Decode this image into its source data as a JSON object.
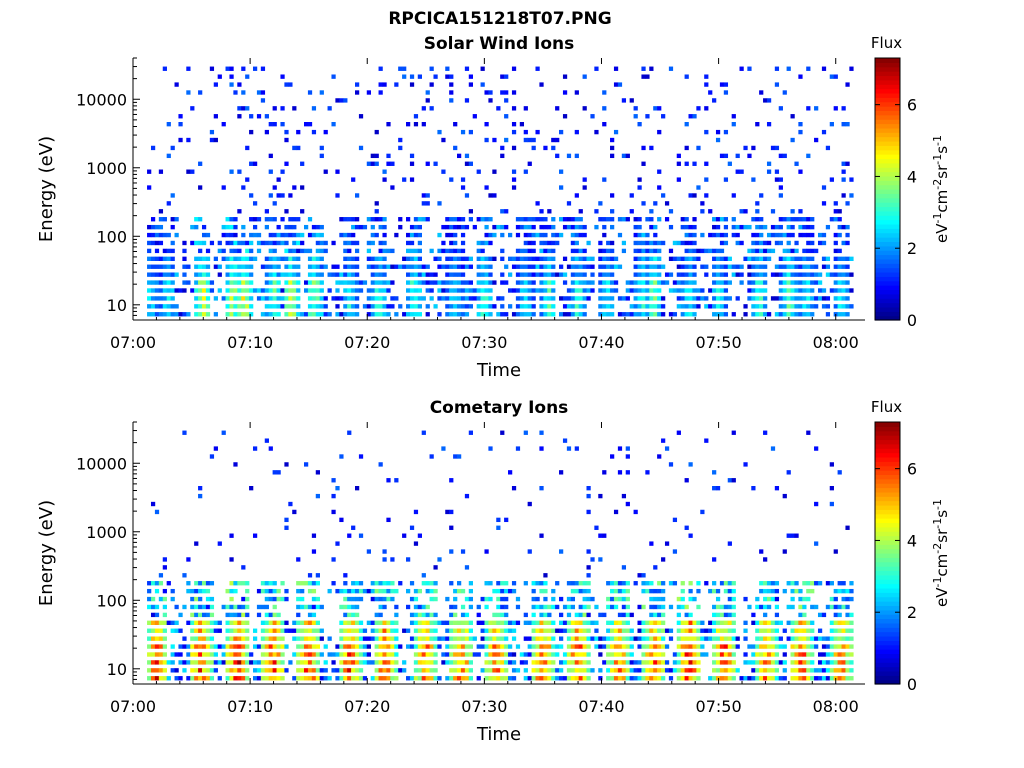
{
  "title": "RPCICA151218T07.PNG",
  "chart_data": [
    {
      "type": "heatmap",
      "title": "Solar Wind Ions",
      "xlabel": "Time",
      "ylabel": "Energy (eV)",
      "x_tick_labels": [
        "07:00",
        "07:10",
        "07:20",
        "07:30",
        "07:40",
        "07:50",
        "08:00"
      ],
      "x_ticks_min": [
        0,
        10,
        20,
        30,
        40,
        50,
        60
      ],
      "xlim_min": [
        0,
        62.5
      ],
      "y_tick_labels": [
        "10",
        "100",
        "1000",
        "10000"
      ],
      "y_ticks": [
        10,
        100,
        1000,
        10000
      ],
      "ylim": [
        6,
        40000
      ],
      "y_scale": "log",
      "colorbar": {
        "title": "Flux",
        "label": "eV-1cm-2sr-1s-1",
        "range": [
          0,
          7.3
        ],
        "tick_labels": [
          "0",
          "2",
          "4",
          "6"
        ],
        "ticks": [
          0,
          2,
          4,
          6
        ]
      },
      "colormap": "jet",
      "bursts_min": [
        1.5,
        3.0,
        6.0,
        8.5,
        9.5,
        12.0,
        13.5,
        15.5,
        18.5,
        21.0,
        24.0,
        27.5,
        30.0,
        33.5,
        35.5,
        38.0,
        40.5,
        43.5,
        44.5,
        47.5,
        50.0,
        53.5,
        56.0,
        57.5,
        60.5
      ],
      "burst_peak_flux": [
        3.0,
        3.2,
        4.8,
        4.6,
        4.9,
        3.8,
        4.6,
        4.2,
        3.2,
        3.4,
        3.8,
        3.0,
        3.6,
        3.0,
        3.5,
        3.6,
        3.0,
        3.3,
        4.0,
        3.2,
        3.0,
        3.6,
        3.8,
        3.1,
        3.2
      ]
    },
    {
      "type": "heatmap",
      "title": "Cometary Ions",
      "xlabel": "Time",
      "ylabel": "Energy (eV)",
      "x_tick_labels": [
        "07:00",
        "07:10",
        "07:20",
        "07:30",
        "07:40",
        "07:50",
        "08:00"
      ],
      "x_ticks_min": [
        0,
        10,
        20,
        30,
        40,
        50,
        60
      ],
      "xlim_min": [
        0,
        62.5
      ],
      "y_tick_labels": [
        "10",
        "100",
        "1000",
        "10000"
      ],
      "y_ticks": [
        10,
        100,
        1000,
        10000
      ],
      "ylim": [
        6,
        40000
      ],
      "y_scale": "log",
      "colorbar": {
        "title": "Flux",
        "label": "eV-1cm-2sr-1s-1",
        "range": [
          0,
          7.3
        ],
        "tick_labels": [
          "0",
          "2",
          "4",
          "6"
        ],
        "ticks": [
          0,
          2,
          4,
          6
        ]
      },
      "colormap": "jet",
      "bursts_min": [
        2.0,
        5.8,
        9.0,
        12.0,
        15.0,
        18.5,
        21.5,
        25.0,
        28.0,
        31.0,
        35.0,
        38.0,
        41.5,
        44.5,
        47.5,
        50.5,
        54.0,
        57.0,
        60.5
      ],
      "burst_peak_flux": [
        6.4,
        6.5,
        6.9,
        6.4,
        6.6,
        6.3,
        6.4,
        6.2,
        6.3,
        6.1,
        6.5,
        6.4,
        6.0,
        6.3,
        6.8,
        6.4,
        6.1,
        6.6,
        6.0
      ]
    }
  ]
}
